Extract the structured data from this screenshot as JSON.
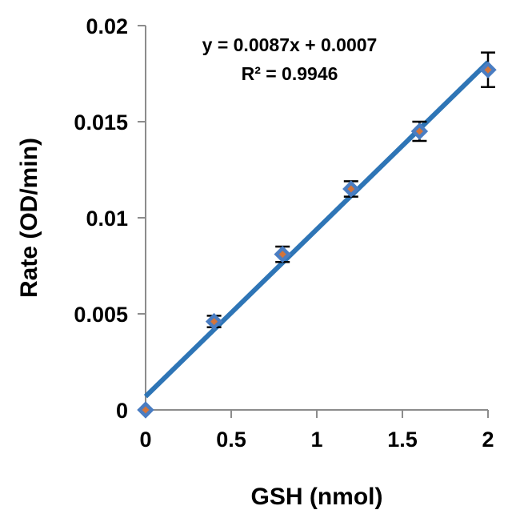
{
  "chart_data": {
    "type": "scatter",
    "xlabel": "GSH (nmol)",
    "ylabel": "Rate (OD/min)",
    "xlim": [
      0,
      2
    ],
    "ylim": [
      0,
      0.02
    ],
    "x_ticks": [
      0,
      0.5,
      1,
      1.5,
      2
    ],
    "y_ticks": [
      0,
      0.005,
      0.01,
      0.015,
      0.02
    ],
    "x_tick_labels": [
      "0",
      "0.5",
      "1",
      "1.5",
      "2"
    ],
    "y_tick_labels": [
      "0",
      "0.005",
      "0.01",
      "0.015",
      "0.02"
    ],
    "grid": false,
    "legend": "none",
    "series": [
      {
        "x": [
          0,
          0.4,
          0.8,
          1.2,
          1.6,
          2
        ],
        "y": [
          0,
          0.0046,
          0.0081,
          0.0115,
          0.0145,
          0.0177
        ],
        "error": [
          0,
          0.0003,
          0.0004,
          0.0004,
          0.0005,
          0.0009
        ],
        "marker_color": "#4a7dc2",
        "marker_inner_color": "#d4743a"
      }
    ],
    "trendline": {
      "slope": 0.0087,
      "intercept": 0.0007,
      "x_range": [
        0,
        2
      ],
      "color": "#2e75b6"
    },
    "annotations": {
      "equation": "y = 0.0087x + 0.0007",
      "r_squared": "R² = 0.9946"
    }
  }
}
